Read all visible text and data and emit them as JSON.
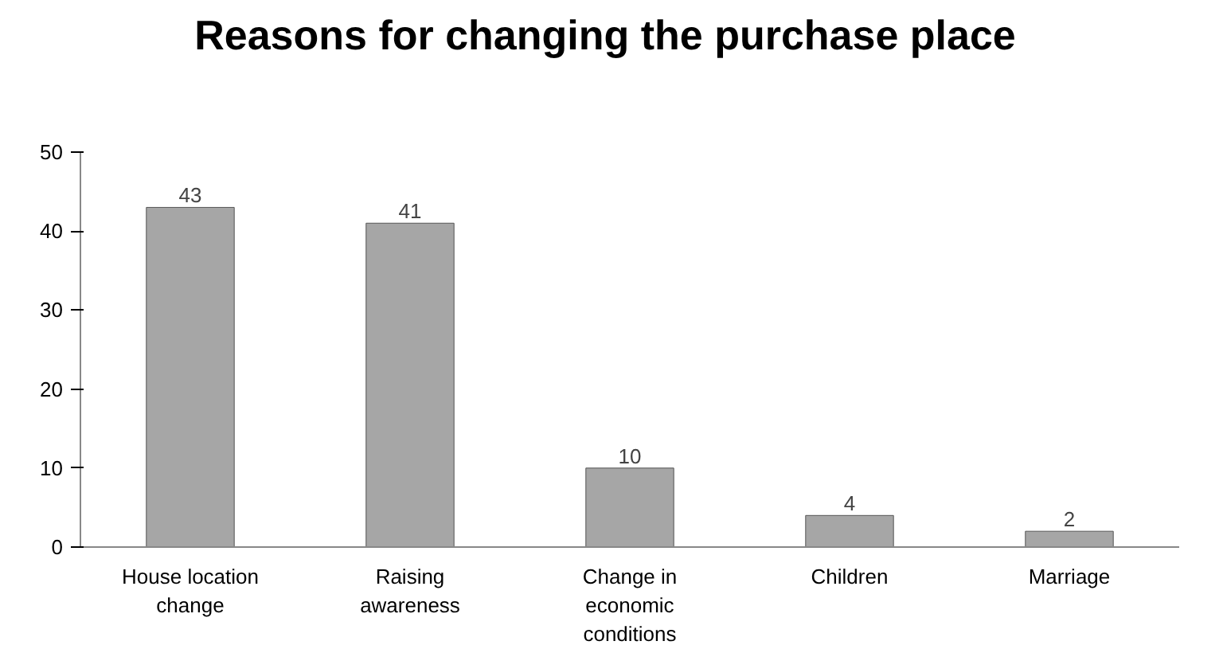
{
  "chart_data": {
    "type": "bar",
    "title": "Reasons for changing the purchase place",
    "categories": [
      "House location change",
      "Raising awareness",
      "Change in economic conditions",
      "Children",
      "Marriage"
    ],
    "values": [
      43,
      41,
      10,
      4,
      2
    ],
    "color": "#a6a6a6",
    "ylim": [
      0,
      50
    ],
    "yticks": [
      0,
      10,
      20,
      30,
      40,
      50
    ],
    "grid": false,
    "data_labels": true
  }
}
